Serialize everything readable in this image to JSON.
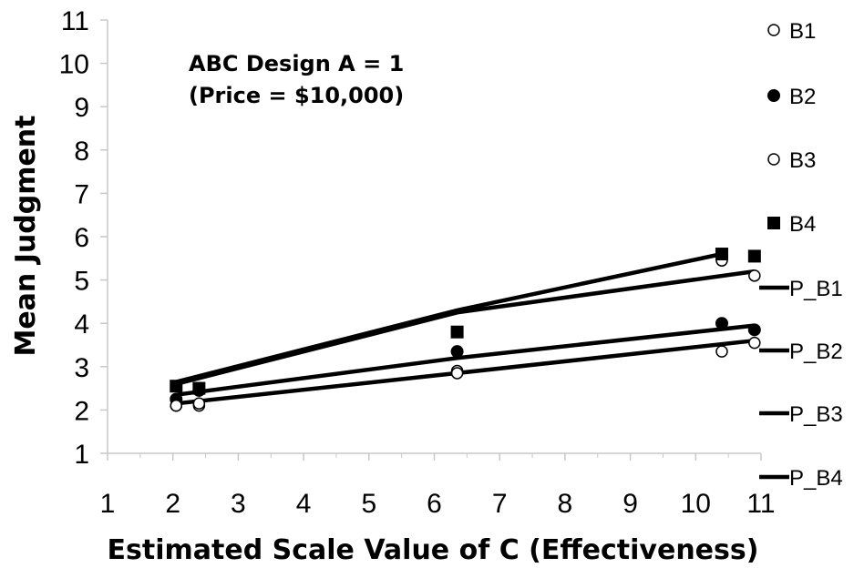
{
  "chart_data": {
    "type": "scatter",
    "xlabel": "Estimated Scale Value of C (Effectiveness)",
    "ylabel": "Mean Judgment",
    "annotation": [
      "ABC Design A = 1",
      "(Price = $10,000)"
    ],
    "xlim": [
      1,
      11
    ],
    "ylim": [
      1,
      11
    ],
    "xticks": [
      1,
      2,
      3,
      4,
      5,
      6,
      7,
      8,
      9,
      10,
      11
    ],
    "yticks": [
      1,
      2,
      3,
      4,
      5,
      6,
      7,
      8,
      9,
      10,
      11
    ],
    "legend_position": "right",
    "series": [
      {
        "name": "B1",
        "kind": "points",
        "marker": "circle-open",
        "points": [
          [
            2.05,
            2.1
          ],
          [
            2.4,
            2.1
          ],
          [
            6.35,
            2.9
          ],
          [
            10.4,
            5.45
          ],
          [
            10.9,
            5.1
          ]
        ]
      },
      {
        "name": "B2",
        "kind": "points",
        "marker": "circle-filled",
        "points": [
          [
            2.05,
            2.25
          ],
          [
            2.4,
            2.45
          ],
          [
            6.35,
            3.35
          ],
          [
            10.4,
            4.0
          ],
          [
            10.9,
            3.85
          ]
        ]
      },
      {
        "name": "B3",
        "kind": "points",
        "marker": "circle-open",
        "points": [
          [
            2.05,
            2.1
          ],
          [
            2.4,
            2.15
          ],
          [
            6.35,
            2.85
          ],
          [
            10.4,
            3.35
          ],
          [
            10.9,
            3.55
          ]
        ]
      },
      {
        "name": "B4",
        "kind": "points",
        "marker": "square-filled",
        "points": [
          [
            2.05,
            2.55
          ],
          [
            2.4,
            2.5
          ],
          [
            6.35,
            3.8
          ],
          [
            10.4,
            5.6
          ],
          [
            10.9,
            5.55
          ]
        ]
      },
      {
        "name": "P_B1",
        "kind": "line",
        "points": [
          [
            2.05,
            2.6
          ],
          [
            6.35,
            4.25
          ],
          [
            10.9,
            5.2
          ]
        ]
      },
      {
        "name": "P_B2",
        "kind": "line",
        "points": [
          [
            2.05,
            2.35
          ],
          [
            6.35,
            3.2
          ],
          [
            10.9,
            3.95
          ]
        ]
      },
      {
        "name": "P_B3",
        "kind": "line",
        "points": [
          [
            2.05,
            2.15
          ],
          [
            6.35,
            2.85
          ],
          [
            10.9,
            3.6
          ]
        ]
      },
      {
        "name": "P_B4",
        "kind": "line",
        "points": [
          [
            2.05,
            2.65
          ],
          [
            6.35,
            4.3
          ],
          [
            10.4,
            5.6
          ]
        ]
      }
    ]
  }
}
